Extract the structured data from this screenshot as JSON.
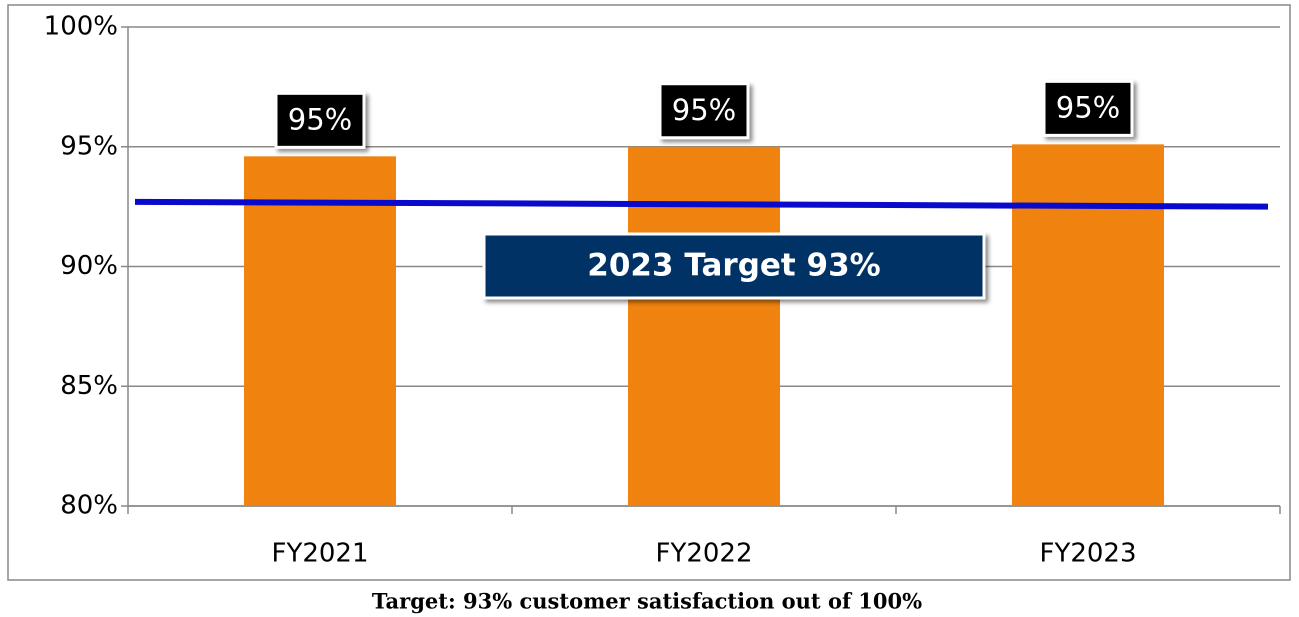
{
  "chart_data": {
    "type": "bar",
    "categories": [
      "FY2021",
      "FY2022",
      "FY2023"
    ],
    "values": [
      94.6,
      95.0,
      95.1
    ],
    "value_labels": [
      "95%",
      "95%",
      "95%"
    ],
    "color": "#f0820f",
    "ylim": [
      80,
      100
    ],
    "yticks": [
      {
        "value": 80,
        "label": "80%"
      },
      {
        "value": 85,
        "label": "85%"
      },
      {
        "value": 90,
        "label": "90%"
      },
      {
        "value": 95,
        "label": "95%"
      },
      {
        "value": 100,
        "label": "100%"
      }
    ],
    "grid": true,
    "target_line": {
      "values": [
        92.7,
        92.5
      ],
      "color": "#0a0acc"
    },
    "annotation": "2023 Target 93%",
    "caption": "Target: 93% customer satisfaction out of 100%"
  }
}
